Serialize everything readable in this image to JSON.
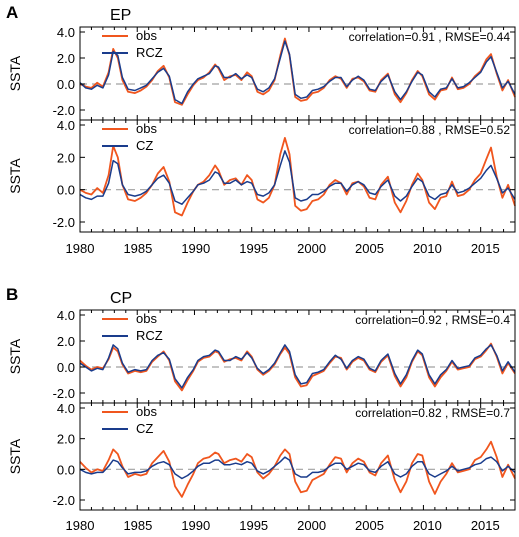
{
  "figure": {
    "colors": {
      "obs": "#f0561e",
      "model": "#1a3c8c",
      "zero_line": "#a0a0a0",
      "frame": "#000000"
    }
  },
  "chart_data": [
    {
      "type": "line",
      "panel_label": "A",
      "region_label": "EP",
      "ylabel": "SSTA",
      "ylim": [
        -2.0,
        4.0
      ],
      "yticks": [
        "4.0",
        "2.0",
        "0.0",
        "-2.0"
      ],
      "xlim": [
        1980,
        2018
      ],
      "xticks": [
        "1980",
        "1985",
        "1990",
        "1995",
        "2000",
        "2005",
        "2010",
        "2015"
      ],
      "zero_line": "dashed",
      "stats_text": "correlation=0.91 , RMSE=0.44",
      "legend": [
        "obs",
        "RCZ"
      ],
      "x": [
        1980.0,
        1980.5,
        1981.0,
        1981.5,
        1982.0,
        1982.5,
        1982.9,
        1983.3,
        1983.7,
        1984.2,
        1984.8,
        1985.3,
        1985.8,
        1986.3,
        1986.8,
        1987.3,
        1987.8,
        1988.3,
        1988.9,
        1989.4,
        1989.9,
        1990.3,
        1990.8,
        1991.3,
        1991.8,
        1992.1,
        1992.6,
        1993.1,
        1993.6,
        1994.1,
        1994.6,
        1995.0,
        1995.5,
        1996.0,
        1996.5,
        1997.0,
        1997.5,
        1997.9,
        1998.3,
        1998.8,
        1999.3,
        1999.8,
        2000.3,
        2000.8,
        2001.3,
        2001.8,
        2002.3,
        2002.8,
        2003.3,
        2003.8,
        2004.3,
        2004.8,
        2005.3,
        2005.8,
        2006.3,
        2006.9,
        2007.5,
        2008.0,
        2008.5,
        2009.0,
        2009.5,
        2009.9,
        2010.5,
        2011.0,
        2011.5,
        2012.0,
        2012.5,
        2013.0,
        2013.5,
        2014.0,
        2014.5,
        2015.0,
        2015.5,
        2015.9,
        2016.4,
        2016.9,
        2017.4,
        2018.0
      ],
      "series": [
        {
          "name": "obs",
          "values": [
            0.0,
            -0.2,
            -0.3,
            0.1,
            -0.2,
            0.9,
            2.7,
            2.0,
            0.3,
            -0.6,
            -0.7,
            -0.5,
            -0.2,
            0.3,
            1.0,
            1.4,
            0.5,
            -1.4,
            -1.6,
            -0.8,
            -0.1,
            0.3,
            0.5,
            0.9,
            1.5,
            1.2,
            0.3,
            0.6,
            0.7,
            0.3,
            0.9,
            0.6,
            -0.6,
            -0.8,
            -0.5,
            0.3,
            2.2,
            3.5,
            2.2,
            -1.0,
            -1.3,
            -1.2,
            -0.7,
            -0.6,
            -0.3,
            0.3,
            0.6,
            0.4,
            -0.3,
            0.4,
            0.5,
            0.2,
            -0.5,
            -0.6,
            0.3,
            0.8,
            -0.8,
            -1.4,
            -0.7,
            0.3,
            1.0,
            0.6,
            -0.8,
            -1.2,
            -0.5,
            -0.4,
            0.5,
            -0.4,
            -0.3,
            0.0,
            0.6,
            1.0,
            1.9,
            2.3,
            0.8,
            -0.5,
            0.3,
            -1.0
          ]
        },
        {
          "name": "RCZ",
          "values": [
            0.1,
            -0.3,
            -0.4,
            -0.1,
            -0.3,
            0.7,
            2.5,
            2.2,
            0.5,
            -0.4,
            -0.5,
            -0.3,
            -0.1,
            0.4,
            0.9,
            1.2,
            0.6,
            -1.2,
            -1.5,
            -0.6,
            0.0,
            0.4,
            0.6,
            0.8,
            1.4,
            1.3,
            0.5,
            0.5,
            0.8,
            0.4,
            0.7,
            0.5,
            -0.4,
            -0.6,
            -0.3,
            0.4,
            2.0,
            3.3,
            2.3,
            -0.8,
            -1.1,
            -1.0,
            -0.5,
            -0.4,
            -0.2,
            0.2,
            0.5,
            0.5,
            -0.2,
            0.3,
            0.6,
            0.3,
            -0.4,
            -0.5,
            0.2,
            0.7,
            -0.6,
            -1.2,
            -0.6,
            0.2,
            0.9,
            0.7,
            -0.6,
            -1.0,
            -0.4,
            -0.3,
            0.4,
            -0.3,
            -0.2,
            0.1,
            0.5,
            0.9,
            1.7,
            2.1,
            0.9,
            -0.3,
            0.2,
            -0.8
          ]
        }
      ]
    },
    {
      "type": "line",
      "panel_label": "",
      "region_label": "",
      "ylabel": "SSTA",
      "ylim": [
        -2.0,
        4.0
      ],
      "yticks": [
        "4.0",
        "2.0",
        "0.0",
        "-2.0"
      ],
      "xlim": [
        1980,
        2018
      ],
      "xticks": [
        "1980",
        "1985",
        "1990",
        "1995",
        "2000",
        "2005",
        "2010",
        "2015"
      ],
      "zero_line": "dashed",
      "stats_text": "correlation=0.88 , RMSE=0.52",
      "legend": [
        "obs",
        "CZ"
      ],
      "x": [
        1980.0,
        1980.5,
        1981.0,
        1981.5,
        1982.0,
        1982.5,
        1982.9,
        1983.3,
        1983.7,
        1984.2,
        1984.8,
        1985.3,
        1985.8,
        1986.3,
        1986.8,
        1987.3,
        1987.8,
        1988.3,
        1988.9,
        1989.4,
        1989.9,
        1990.3,
        1990.8,
        1991.3,
        1991.8,
        1992.1,
        1992.6,
        1993.1,
        1993.6,
        1994.1,
        1994.6,
        1995.0,
        1995.5,
        1996.0,
        1996.5,
        1997.0,
        1997.5,
        1997.9,
        1998.3,
        1998.8,
        1999.3,
        1999.8,
        2000.3,
        2000.8,
        2001.3,
        2001.8,
        2002.3,
        2002.8,
        2003.3,
        2003.8,
        2004.3,
        2004.8,
        2005.3,
        2005.8,
        2006.3,
        2006.9,
        2007.5,
        2008.0,
        2008.5,
        2009.0,
        2009.5,
        2009.9,
        2010.5,
        2011.0,
        2011.5,
        2012.0,
        2012.5,
        2013.0,
        2013.5,
        2014.0,
        2014.5,
        2015.0,
        2015.5,
        2015.9,
        2016.4,
        2016.9,
        2017.4,
        2018.0
      ],
      "series": [
        {
          "name": "obs",
          "values": [
            0.0,
            -0.2,
            -0.3,
            0.1,
            -0.2,
            0.9,
            2.7,
            2.0,
            0.3,
            -0.6,
            -0.7,
            -0.5,
            -0.2,
            0.3,
            1.0,
            1.4,
            0.5,
            -1.4,
            -1.6,
            -0.8,
            -0.1,
            0.3,
            0.5,
            0.9,
            1.5,
            1.2,
            0.3,
            0.6,
            0.7,
            0.3,
            0.9,
            0.6,
            -0.6,
            -0.8,
            -0.5,
            0.3,
            2.2,
            3.2,
            2.2,
            -1.0,
            -1.3,
            -1.2,
            -0.7,
            -0.6,
            -0.3,
            0.3,
            0.6,
            0.4,
            -0.3,
            0.4,
            0.5,
            0.2,
            -0.5,
            -0.6,
            0.3,
            0.8,
            -0.8,
            -1.4,
            -0.7,
            0.3,
            1.0,
            0.6,
            -0.8,
            -1.2,
            -0.5,
            -0.4,
            0.5,
            -0.4,
            -0.3,
            0.0,
            0.6,
            1.0,
            1.9,
            2.6,
            0.8,
            -0.5,
            0.3,
            -1.0
          ]
        },
        {
          "name": "CZ",
          "values": [
            -0.3,
            -0.5,
            -0.6,
            -0.4,
            -0.4,
            0.4,
            1.8,
            1.6,
            0.3,
            -0.3,
            -0.4,
            -0.3,
            -0.1,
            0.3,
            0.7,
            0.9,
            0.4,
            -0.7,
            -0.9,
            -0.5,
            -0.1,
            0.3,
            0.4,
            0.6,
            1.1,
            1.0,
            0.4,
            0.4,
            0.6,
            0.3,
            0.5,
            0.4,
            -0.3,
            -0.4,
            -0.2,
            0.3,
            1.5,
            2.4,
            1.7,
            -0.5,
            -0.7,
            -0.6,
            -0.3,
            -0.3,
            -0.1,
            0.2,
            0.4,
            0.4,
            -0.1,
            0.3,
            0.5,
            0.3,
            -0.2,
            -0.3,
            0.2,
            0.6,
            -0.4,
            -0.7,
            -0.4,
            0.2,
            0.7,
            0.5,
            -0.4,
            -0.6,
            -0.3,
            -0.2,
            0.3,
            -0.2,
            -0.1,
            0.1,
            0.4,
            0.7,
            1.2,
            1.5,
            0.7,
            -0.2,
            0.1,
            -0.6
          ]
        }
      ]
    },
    {
      "type": "line",
      "panel_label": "B",
      "region_label": "CP",
      "ylabel": "SSTA",
      "ylim": [
        -2.0,
        4.0
      ],
      "yticks": [
        "4.0",
        "2.0",
        "0.0",
        "-2.0"
      ],
      "xlim": [
        1980,
        2018
      ],
      "xticks": [
        "1980",
        "1985",
        "1990",
        "1995",
        "2000",
        "2005",
        "2010",
        "2015"
      ],
      "zero_line": "dashed",
      "stats_text": "correlation=0.92 , RMSE=0.4",
      "legend": [
        "obs",
        "RCZ"
      ],
      "x": [
        1980.0,
        1980.5,
        1981.0,
        1981.5,
        1982.0,
        1982.5,
        1982.9,
        1983.3,
        1983.7,
        1984.2,
        1984.8,
        1985.3,
        1985.8,
        1986.3,
        1986.8,
        1987.3,
        1987.8,
        1988.3,
        1988.9,
        1989.4,
        1989.9,
        1990.3,
        1990.8,
        1991.3,
        1991.8,
        1992.1,
        1992.6,
        1993.1,
        1993.6,
        1994.1,
        1994.6,
        1995.0,
        1995.5,
        1996.0,
        1996.5,
        1997.0,
        1997.5,
        1997.9,
        1998.3,
        1998.8,
        1999.3,
        1999.8,
        2000.3,
        2000.8,
        2001.3,
        2001.8,
        2002.3,
        2002.8,
        2003.3,
        2003.8,
        2004.3,
        2004.8,
        2005.3,
        2005.8,
        2006.3,
        2006.9,
        2007.5,
        2008.0,
        2008.5,
        2009.0,
        2009.5,
        2009.9,
        2010.5,
        2011.0,
        2011.5,
        2012.0,
        2012.5,
        2013.0,
        2013.5,
        2014.0,
        2014.5,
        2015.0,
        2015.5,
        2015.9,
        2016.4,
        2016.9,
        2017.4,
        2018.0
      ],
      "series": [
        {
          "name": "obs",
          "values": [
            0.5,
            0.1,
            -0.2,
            0.0,
            -0.1,
            0.6,
            1.5,
            1.2,
            0.2,
            -0.5,
            -0.3,
            -0.4,
            -0.3,
            0.4,
            0.8,
            1.2,
            0.5,
            -1.1,
            -1.8,
            -1.0,
            -0.3,
            0.4,
            0.7,
            0.8,
            1.2,
            1.1,
            0.4,
            0.6,
            0.7,
            0.5,
            1.2,
            0.8,
            -0.2,
            -0.6,
            -0.3,
            0.2,
            1.0,
            1.5,
            1.0,
            -0.8,
            -1.5,
            -1.4,
            -0.7,
            -0.5,
            -0.3,
            0.3,
            0.8,
            0.7,
            -0.2,
            0.4,
            0.7,
            0.5,
            -0.2,
            -0.4,
            0.4,
            0.9,
            -0.7,
            -1.5,
            -0.8,
            0.4,
            1.2,
            0.9,
            -0.8,
            -1.5,
            -0.8,
            -0.3,
            0.4,
            -0.2,
            -0.1,
            0.0,
            0.6,
            0.8,
            1.3,
            1.8,
            0.8,
            -0.5,
            0.3,
            -0.5
          ]
        },
        {
          "name": "RCZ",
          "values": [
            0.3,
            0.0,
            -0.3,
            -0.1,
            -0.2,
            0.7,
            1.7,
            1.4,
            0.3,
            -0.4,
            -0.2,
            -0.3,
            -0.2,
            0.5,
            0.9,
            1.1,
            0.6,
            -0.9,
            -1.6,
            -0.8,
            -0.2,
            0.5,
            0.8,
            0.9,
            1.3,
            1.2,
            0.5,
            0.5,
            0.8,
            0.6,
            1.1,
            0.7,
            -0.1,
            -0.5,
            -0.2,
            0.3,
            1.1,
            1.7,
            1.2,
            -0.6,
            -1.3,
            -1.2,
            -0.5,
            -0.4,
            -0.2,
            0.4,
            0.9,
            0.6,
            -0.1,
            0.5,
            0.8,
            0.6,
            -0.1,
            -0.3,
            0.5,
            1.0,
            -0.5,
            -1.3,
            -0.6,
            0.5,
            1.3,
            1.0,
            -0.6,
            -1.3,
            -0.6,
            -0.2,
            0.5,
            -0.1,
            0.0,
            0.1,
            0.7,
            0.9,
            1.4,
            1.7,
            0.9,
            -0.3,
            0.4,
            -0.4
          ]
        }
      ]
    },
    {
      "type": "line",
      "panel_label": "",
      "region_label": "",
      "ylabel": "SSTA",
      "ylim": [
        -2.0,
        4.0
      ],
      "yticks": [
        "4.0",
        "2.0",
        "0.0",
        "-2.0"
      ],
      "xlim": [
        1980,
        2018
      ],
      "xticks": [
        "1980",
        "1985",
        "1990",
        "1995",
        "2000",
        "2005",
        "2010",
        "2015"
      ],
      "zero_line": "dashed",
      "stats_text": "correlation=0.82 , RMSE=0.7",
      "legend": [
        "obs",
        "CZ"
      ],
      "x": [
        1980.0,
        1980.5,
        1981.0,
        1981.5,
        1982.0,
        1982.5,
        1982.9,
        1983.3,
        1983.7,
        1984.2,
        1984.8,
        1985.3,
        1985.8,
        1986.3,
        1986.8,
        1987.3,
        1987.8,
        1988.3,
        1988.9,
        1989.4,
        1989.9,
        1990.3,
        1990.8,
        1991.3,
        1991.8,
        1992.1,
        1992.6,
        1993.1,
        1993.6,
        1994.1,
        1994.6,
        1995.0,
        1995.5,
        1996.0,
        1996.5,
        1997.0,
        1997.5,
        1997.9,
        1998.3,
        1998.8,
        1999.3,
        1999.8,
        2000.3,
        2000.8,
        2001.3,
        2001.8,
        2002.3,
        2002.8,
        2003.3,
        2003.8,
        2004.3,
        2004.8,
        2005.3,
        2005.8,
        2006.3,
        2006.9,
        2007.5,
        2008.0,
        2008.5,
        2009.0,
        2009.5,
        2009.9,
        2010.5,
        2011.0,
        2011.5,
        2012.0,
        2012.5,
        2013.0,
        2013.5,
        2014.0,
        2014.5,
        2015.0,
        2015.5,
        2015.9,
        2016.4,
        2016.9,
        2017.4,
        2018.0
      ],
      "series": [
        {
          "name": "obs",
          "values": [
            0.5,
            0.1,
            -0.2,
            0.0,
            -0.1,
            0.6,
            1.3,
            1.0,
            0.2,
            -0.5,
            -0.3,
            -0.4,
            -0.3,
            0.4,
            0.8,
            1.2,
            0.5,
            -1.1,
            -1.8,
            -1.0,
            -0.3,
            0.4,
            0.7,
            0.8,
            1.1,
            1.0,
            0.4,
            0.6,
            0.7,
            0.5,
            1.0,
            0.8,
            -0.2,
            -0.6,
            -0.3,
            0.2,
            0.9,
            1.3,
            1.0,
            -0.8,
            -1.5,
            -1.4,
            -0.7,
            -0.5,
            -0.3,
            0.3,
            0.8,
            0.7,
            -0.2,
            0.4,
            0.7,
            0.5,
            -0.2,
            -0.4,
            0.4,
            0.9,
            -0.7,
            -1.5,
            -0.8,
            0.4,
            1.0,
            0.9,
            -0.8,
            -1.6,
            -0.8,
            -0.3,
            0.4,
            -0.2,
            -0.1,
            0.0,
            0.6,
            0.8,
            1.3,
            1.8,
            0.8,
            -0.5,
            0.3,
            -0.6
          ]
        },
        {
          "name": "CZ",
          "values": [
            0.0,
            -0.2,
            -0.3,
            -0.2,
            -0.2,
            0.2,
            0.6,
            0.5,
            0.1,
            -0.3,
            -0.2,
            -0.2,
            -0.1,
            0.2,
            0.4,
            0.5,
            0.3,
            -0.3,
            -0.6,
            -0.4,
            -0.1,
            0.2,
            0.4,
            0.4,
            0.6,
            0.6,
            0.3,
            0.3,
            0.4,
            0.3,
            0.5,
            0.4,
            -0.1,
            -0.3,
            -0.1,
            0.2,
            0.5,
            0.8,
            0.6,
            -0.3,
            -0.5,
            -0.5,
            -0.2,
            -0.2,
            -0.1,
            0.2,
            0.4,
            0.4,
            0.0,
            0.2,
            0.4,
            0.3,
            -0.1,
            -0.2,
            0.2,
            0.5,
            -0.3,
            -0.5,
            -0.3,
            0.2,
            0.5,
            0.5,
            -0.3,
            -0.5,
            -0.3,
            -0.1,
            0.2,
            -0.1,
            0.0,
            0.1,
            0.3,
            0.4,
            0.7,
            0.8,
            0.5,
            -0.1,
            0.2,
            -0.2
          ]
        }
      ]
    }
  ]
}
